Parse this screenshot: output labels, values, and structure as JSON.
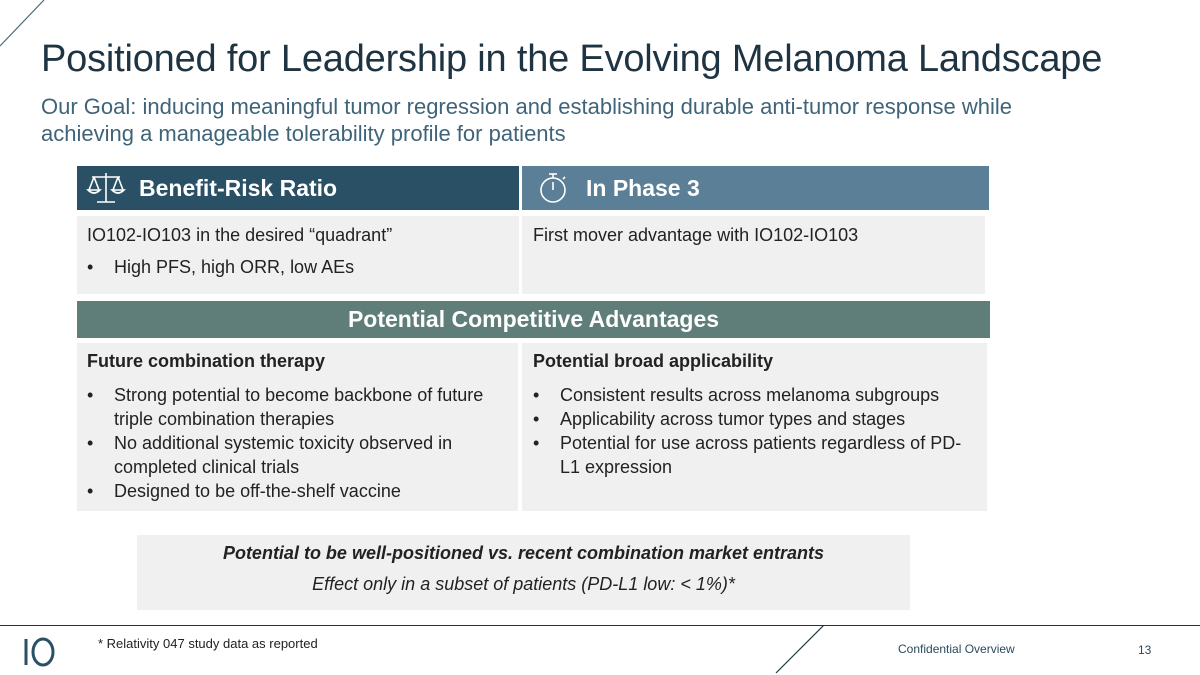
{
  "header": {
    "title": "Positioned for Leadership in the Evolving Melanoma Landscape",
    "subtitle": "Our Goal: inducing meaningful tumor regression and establishing durable anti-tumor response while achieving a manageable tolerability profile for patients"
  },
  "benefit_risk": {
    "heading": "Benefit-Risk Ratio",
    "icon": "scales-icon",
    "line": "IO102-IO103 in the desired “quadrant”",
    "bullets": [
      "High PFS, high ORR, low AEs"
    ]
  },
  "phase3": {
    "heading": "In Phase 3",
    "icon": "stopwatch-icon",
    "line": "First mover advantage with IO102-IO103"
  },
  "advantages": {
    "heading": "Potential Competitive Advantages",
    "future": {
      "title": "Future combination therapy",
      "bullets": [
        "Strong potential to become backbone of future triple combination therapies",
        "No additional systemic toxicity observed in completed clinical trials",
        "Designed to be off-the-shelf vaccine"
      ]
    },
    "broad": {
      "title": "Potential broad applicability",
      "bullets": [
        "Consistent results across melanoma subgroups",
        "Applicability across tumor types and stages",
        "Potential for use across patients regardless of PD-L1 expression"
      ]
    }
  },
  "note": {
    "line1": "Potential to be well-positioned vs. recent combination market entrants",
    "line2": "Effect only in a subset of patients (PD-L1 low: < 1%)*"
  },
  "footer": {
    "footnote": "* Relativity 047 study data as reported",
    "label": "Confidential Overview",
    "page": "13",
    "logo": "io-logo"
  },
  "colors": {
    "dark_blue": "#2a5066",
    "mid_blue": "#5a7f96",
    "teal_gray": "#5f7e7a",
    "panel": "#f0f0f0",
    "title": "#1f3442",
    "subtitle": "#3f6479"
  }
}
